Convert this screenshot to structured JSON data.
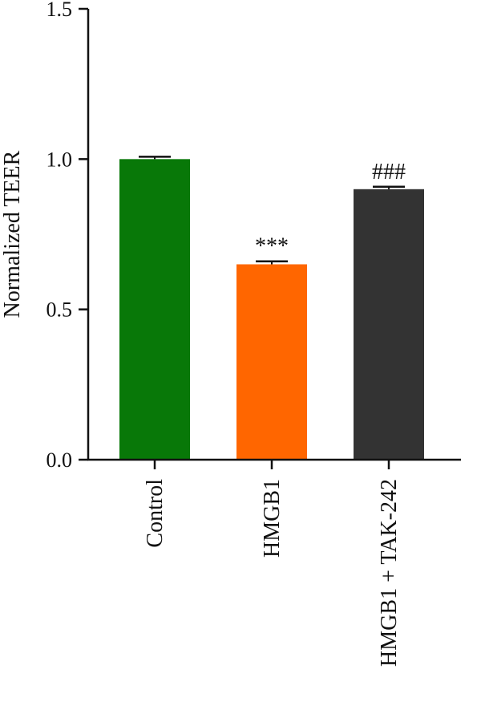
{
  "chart_data": {
    "type": "bar",
    "title": "",
    "xlabel": "",
    "ylabel": "Normalized TEER",
    "ylim": [
      0,
      1.5
    ],
    "yticks": [
      "0.0",
      "0.5",
      "1.0",
      "1.5"
    ],
    "categories": [
      "Control",
      "HMGB1",
      "HMGB1 + TAK-242"
    ],
    "values": [
      1.0,
      0.65,
      0.9
    ],
    "errors": [
      0.008,
      0.01,
      0.008
    ],
    "annotations": [
      "",
      "***",
      "###"
    ],
    "colors": [
      "#087808",
      "#ff6600",
      "#333333"
    ],
    "grid": false,
    "legend": "none"
  }
}
